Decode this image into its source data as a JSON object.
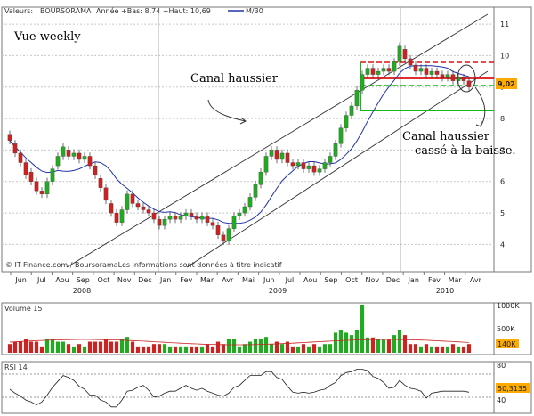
{
  "header": {
    "label_values": "Valeurs:",
    "ticker": "BOURSORAMA",
    "ohlc": "Année +Bas: 8,74 +Haut: 10,69",
    "ma_label": "M/30"
  },
  "annotations": {
    "vue": "Vue weekly",
    "canal": "Canal haussier",
    "break_line1": "Canal haussier",
    "break_line2": "cassé à la baisse.",
    "copyright": "© IT-Finance.com / BoursoramaLes informations sont données à titre indicatif"
  },
  "colors": {
    "up": "#22aa22",
    "down": "#cc2222",
    "ma": "#2233aa",
    "hline": "#dd1111",
    "green_line": "#11bb11",
    "last_price_box": "#ffaa00"
  },
  "chart_data": [
    {
      "type": "candlestick",
      "title": "",
      "x_months": [
        "Jun",
        "Jul",
        "Aou",
        "Sep",
        "Oct",
        "Nov",
        "Dec",
        "Jan",
        "Fev",
        "Mar",
        "Avr",
        "Mai",
        "Jun",
        "Jul",
        "Aou",
        "Sep",
        "Oct",
        "Nov",
        "Dec",
        "Jan",
        "Fev",
        "Mar",
        "Avr"
      ],
      "x_years": [
        "2008",
        "2009",
        "2010"
      ],
      "y_ticks": [
        "4",
        "5",
        "6",
        "7",
        "8",
        "9",
        "10",
        "11"
      ],
      "ylim": [
        3.7,
        11.2
      ],
      "last_price_label": "9,02",
      "series": [
        {
          "candles": [
            [
              7.5,
              7.3
            ],
            [
              7.2,
              6.9
            ],
            [
              6.9,
              6.6
            ],
            [
              6.6,
              6.2
            ],
            [
              6.3,
              6.0
            ],
            [
              6.0,
              5.7
            ],
            [
              5.7,
              5.6
            ],
            [
              5.6,
              6.0
            ],
            [
              6.0,
              6.4
            ],
            [
              6.5,
              6.8
            ],
            [
              6.8,
              7.1
            ],
            [
              7.0,
              6.8
            ],
            [
              6.8,
              6.9
            ],
            [
              6.9,
              6.7
            ],
            [
              6.7,
              6.8
            ],
            [
              6.8,
              6.5
            ],
            [
              6.5,
              6.2
            ],
            [
              6.1,
              5.8
            ],
            [
              5.8,
              5.4
            ],
            [
              5.3,
              5.0
            ],
            [
              5.0,
              4.7
            ],
            [
              4.7,
              5.1
            ],
            [
              5.1,
              5.6
            ],
            [
              5.6,
              5.3
            ],
            [
              5.3,
              5.2
            ],
            [
              5.2,
              5.1
            ],
            [
              5.1,
              5.0
            ],
            [
              5.0,
              4.8
            ],
            [
              4.8,
              4.6
            ],
            [
              4.6,
              4.8
            ],
            [
              4.8,
              4.9
            ],
            [
              4.9,
              4.8
            ],
            [
              4.8,
              4.9
            ],
            [
              4.9,
              5.0
            ],
            [
              5.0,
              4.9
            ],
            [
              4.9,
              4.8
            ],
            [
              4.8,
              4.9
            ],
            [
              4.9,
              4.7
            ],
            [
              4.7,
              4.6
            ],
            [
              4.6,
              4.3
            ],
            [
              4.3,
              4.1
            ],
            [
              4.1,
              4.5
            ],
            [
              4.5,
              4.9
            ],
            [
              4.9,
              5.0
            ],
            [
              5.0,
              5.2
            ],
            [
              5.2,
              5.5
            ],
            [
              5.5,
              5.9
            ],
            [
              5.9,
              6.3
            ],
            [
              6.3,
              6.8
            ],
            [
              6.8,
              7.0
            ],
            [
              7.0,
              6.7
            ],
            [
              6.7,
              6.9
            ],
            [
              6.9,
              6.6
            ],
            [
              6.6,
              6.5
            ],
            [
              6.5,
              6.6
            ],
            [
              6.6,
              6.4
            ],
            [
              6.4,
              6.5
            ],
            [
              6.5,
              6.3
            ],
            [
              6.3,
              6.4
            ],
            [
              6.4,
              6.6
            ],
            [
              6.6,
              6.8
            ],
            [
              6.8,
              7.2
            ],
            [
              7.2,
              7.7
            ],
            [
              7.7,
              8.1
            ],
            [
              8.1,
              8.4
            ],
            [
              8.4,
              8.9
            ],
            [
              8.9,
              9.4
            ],
            [
              9.4,
              9.6
            ],
            [
              9.6,
              9.4
            ],
            [
              9.4,
              9.5
            ],
            [
              9.5,
              9.6
            ],
            [
              9.6,
              9.5
            ],
            [
              9.5,
              9.8
            ],
            [
              9.8,
              10.3
            ],
            [
              10.2,
              9.9
            ],
            [
              9.9,
              9.7
            ],
            [
              9.7,
              9.5
            ],
            [
              9.5,
              9.6
            ],
            [
              9.6,
              9.4
            ],
            [
              9.4,
              9.5
            ],
            [
              9.5,
              9.4
            ],
            [
              9.4,
              9.3
            ],
            [
              9.3,
              9.4
            ],
            [
              9.4,
              9.2
            ],
            [
              9.2,
              9.3
            ],
            [
              9.3,
              9.2
            ],
            [
              9.2,
              9.0
            ]
          ]
        }
      ],
      "moving_average": "M/30"
    },
    {
      "type": "bar",
      "title": "Volume 15",
      "y_ticks": [
        "1000K",
        "500K"
      ],
      "last_value_label": "140K"
    },
    {
      "type": "line",
      "title": "RSI 14",
      "y_ticks": [
        "80",
        "40"
      ],
      "last_value_label": "50,3135"
    }
  ]
}
